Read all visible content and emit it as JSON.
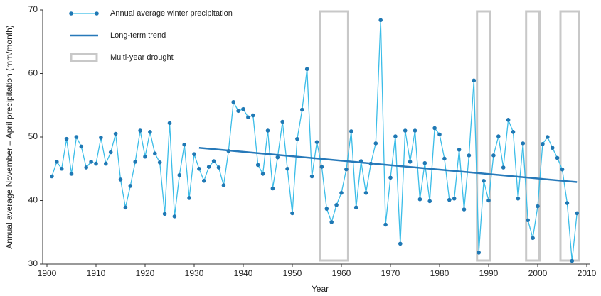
{
  "chart_data": {
    "type": "line",
    "xlabel": "Year",
    "ylabel": "Annual average November – April precipitation (mm/month)",
    "x": [
      1901,
      1902,
      1903,
      1904,
      1905,
      1906,
      1907,
      1908,
      1909,
      1910,
      1911,
      1912,
      1913,
      1914,
      1915,
      1916,
      1917,
      1918,
      1919,
      1920,
      1921,
      1922,
      1923,
      1924,
      1925,
      1926,
      1927,
      1928,
      1929,
      1930,
      1931,
      1932,
      1933,
      1934,
      1935,
      1936,
      1937,
      1938,
      1939,
      1940,
      1941,
      1942,
      1943,
      1944,
      1945,
      1946,
      1947,
      1948,
      1949,
      1950,
      1951,
      1952,
      1953,
      1954,
      1955,
      1956,
      1957,
      1958,
      1959,
      1960,
      1961,
      1962,
      1963,
      1964,
      1965,
      1966,
      1967,
      1968,
      1969,
      1970,
      1971,
      1972,
      1973,
      1974,
      1975,
      1976,
      1977,
      1978,
      1979,
      1980,
      1981,
      1982,
      1983,
      1984,
      1985,
      1986,
      1987,
      1988,
      1989,
      1990,
      1991,
      1992,
      1993,
      1994,
      1995,
      1996,
      1997,
      1998,
      1999,
      2000,
      2001,
      2002,
      2003,
      2004,
      2005,
      2006,
      2007,
      2008
    ],
    "series": [
      {
        "name": "Annual average winter precipitation",
        "color": "#3bbde8",
        "marker_color": "#1f78b4",
        "values": [
          43.8,
          46.1,
          45.0,
          49.7,
          44.2,
          50.0,
          48.5,
          45.2,
          46.1,
          45.8,
          49.9,
          45.8,
          47.6,
          50.5,
          43.3,
          38.9,
          42.3,
          46.1,
          51.0,
          46.9,
          50.8,
          47.4,
          46.0,
          37.9,
          52.2,
          37.5,
          44.0,
          48.8,
          40.4,
          47.3,
          45.0,
          43.1,
          45.3,
          46.2,
          45.2,
          42.4,
          47.8,
          55.5,
          54.1,
          54.4,
          53.1,
          53.4,
          45.6,
          44.2,
          51.0,
          41.9,
          46.8,
          52.4,
          45.0,
          38.0,
          49.7,
          54.3,
          60.7,
          43.8,
          49.2,
          45.3,
          38.7,
          36.6,
          39.3,
          41.2,
          44.9,
          50.9,
          38.9,
          46.2,
          41.2,
          45.8,
          49.0,
          68.4,
          36.2,
          43.6,
          50.1,
          33.2,
          51.0,
          46.1,
          51.0,
          40.2,
          45.9,
          39.9,
          51.4,
          50.4,
          46.6,
          40.1,
          40.3,
          48.0,
          38.6,
          47.1,
          58.9,
          31.8,
          43.1,
          40.0,
          47.1,
          50.1,
          45.2,
          52.7,
          50.8,
          40.3,
          49.0,
          36.9,
          34.1,
          39.1,
          48.9,
          50.0,
          48.3,
          46.7,
          44.9,
          39.6,
          30.5,
          38.0
        ]
      },
      {
        "name": "Long-term trend",
        "color": "#2779b9",
        "x": [
          1931,
          2008
        ],
        "values": [
          48.3,
          42.9
        ]
      }
    ],
    "droughts": {
      "name": "Multi-year drought",
      "color": "#c8c8c8",
      "periods": [
        [
          1956,
          1961
        ],
        [
          1988,
          1990
        ],
        [
          1998,
          2000
        ],
        [
          2005,
          2008
        ]
      ]
    },
    "xlim": [
      1900,
      2010
    ],
    "xticks": [
      1900,
      1910,
      1920,
      1930,
      1940,
      1950,
      1960,
      1970,
      1980,
      1990,
      2000,
      2010
    ],
    "ylim": [
      30,
      70
    ],
    "yticks": [
      30,
      40,
      50,
      60,
      70
    ],
    "legend": "top-left"
  }
}
